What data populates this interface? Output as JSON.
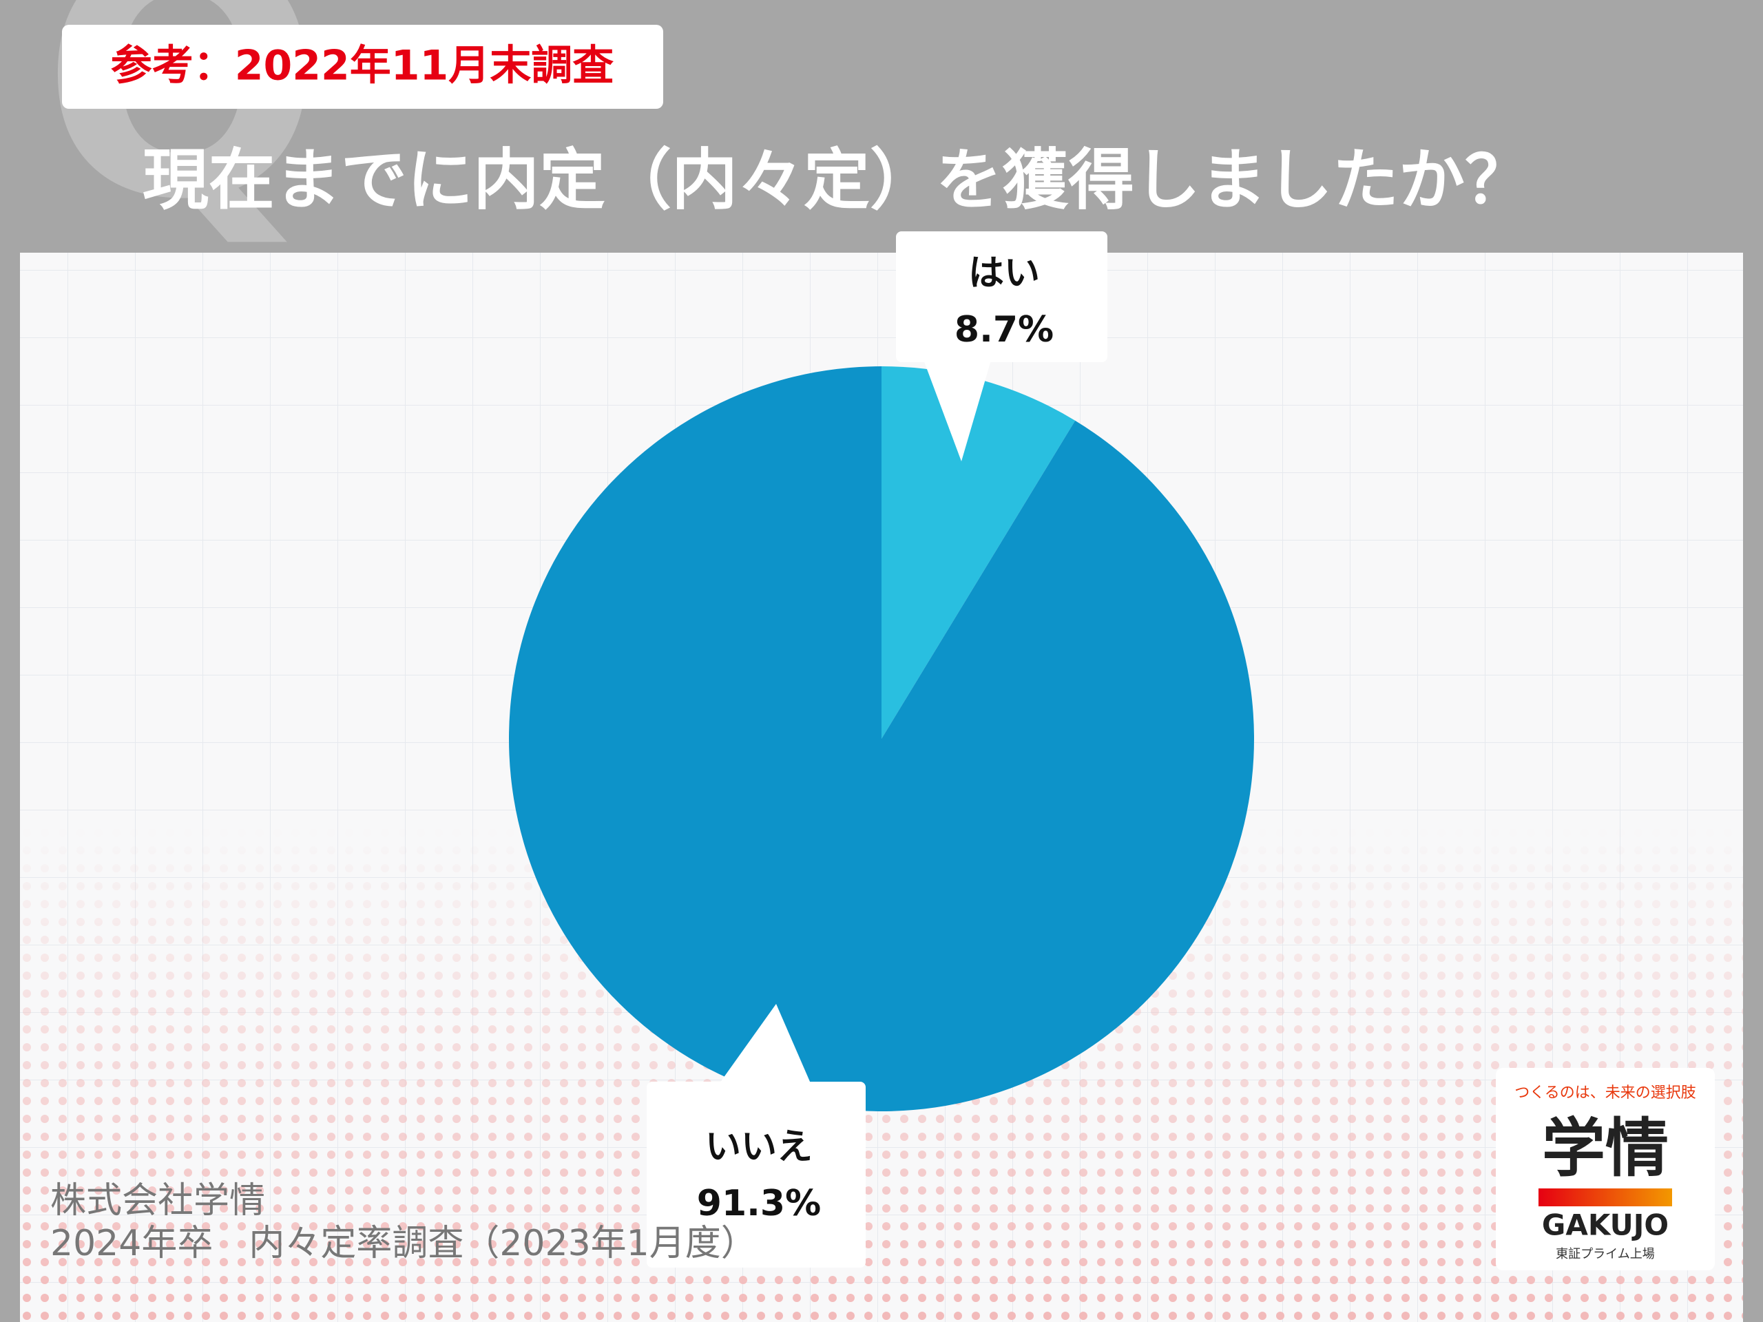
{
  "badge": "参考：2022年11月末調査",
  "chart_data": {
    "type": "pie",
    "title": "現在までに内定（内々定）を獲得しましたか？",
    "categories": [
      "はい",
      "いいえ"
    ],
    "values": [
      8.7,
      91.3
    ],
    "value_labels": [
      "8.7%",
      "91.3%"
    ],
    "colors": [
      "#29bfe0",
      "#0d93c9"
    ]
  },
  "source": [
    "株式会社学情",
    "2024年卒　内々定率調査（2023年1月度）"
  ],
  "logo": {
    "tagline": "つくるのは、未来の選択肢",
    "name": "学情",
    "roman": "GAKUJO",
    "listing": "東証プライム上場"
  }
}
